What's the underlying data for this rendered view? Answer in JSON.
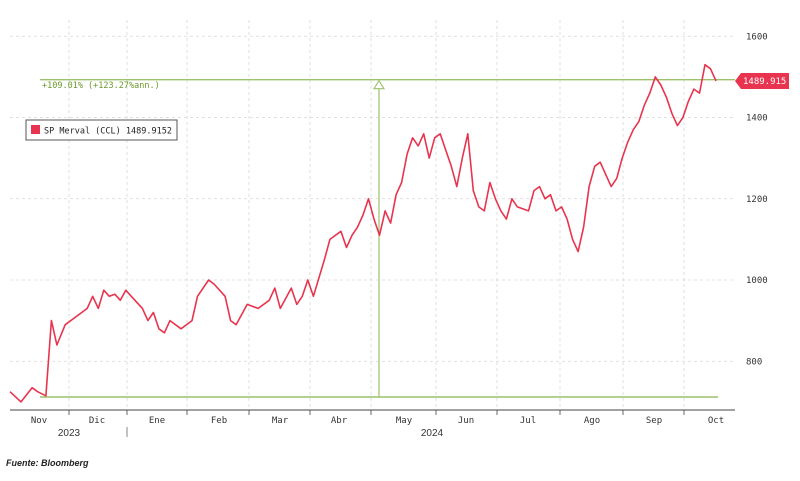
{
  "source": "Fuente: Bloomberg",
  "legend": {
    "label": "SP Merval (CCL)  1489.9152",
    "color": "#e8344e"
  },
  "annotation": {
    "text": "+109.01% (+123.27%ann.)",
    "color": "#9cc16b"
  },
  "last_value_label": "1489.915",
  "chart_data": {
    "type": "line",
    "y_ticks": [
      800,
      1000,
      1200,
      1400,
      1600
    ],
    "ylim": [
      680,
      1640
    ],
    "x_ticks": [
      "Nov",
      "Dic",
      "Ene",
      "Feb",
      "Mar",
      "Abr",
      "May",
      "Jun",
      "Jul",
      "Ago",
      "Sep",
      "Oct"
    ],
    "years": [
      "2023",
      "2024"
    ],
    "grid": true,
    "legend_position": "top-left",
    "reference_lines": {
      "low": 712,
      "high": 1493
    },
    "series": [
      {
        "name": "SP Merval (CCL)",
        "color": "#e8344e",
        "last": 1489.9152,
        "values": [
          [
            0.0,
            725
          ],
          [
            2.0,
            700
          ],
          [
            4.0,
            735
          ],
          [
            5.0,
            725
          ],
          [
            6.5,
            715
          ],
          [
            7.5,
            900
          ],
          [
            8.5,
            840
          ],
          [
            10,
            890
          ],
          [
            12,
            910
          ],
          [
            14,
            930
          ],
          [
            15,
            960
          ],
          [
            16,
            930
          ],
          [
            17,
            975
          ],
          [
            18,
            960
          ],
          [
            19,
            965
          ],
          [
            20,
            950
          ],
          [
            21,
            975
          ],
          [
            22,
            960
          ],
          [
            24,
            930
          ],
          [
            25,
            900
          ],
          [
            26,
            920
          ],
          [
            27,
            880
          ],
          [
            28,
            870
          ],
          [
            29,
            900
          ],
          [
            31,
            880
          ],
          [
            33,
            900
          ],
          [
            34,
            960
          ],
          [
            36,
            1000
          ],
          [
            37,
            990
          ],
          [
            39,
            960
          ],
          [
            40,
            900
          ],
          [
            41,
            890
          ],
          [
            43,
            940
          ],
          [
            45,
            930
          ],
          [
            47,
            950
          ],
          [
            48,
            980
          ],
          [
            49,
            930
          ],
          [
            51,
            980
          ],
          [
            52,
            940
          ],
          [
            53,
            960
          ],
          [
            54,
            1000
          ],
          [
            55,
            960
          ],
          [
            57,
            1050
          ],
          [
            58,
            1100
          ],
          [
            60,
            1120
          ],
          [
            61,
            1080
          ],
          [
            62,
            1110
          ],
          [
            63,
            1130
          ],
          [
            64,
            1160
          ],
          [
            65,
            1200
          ],
          [
            66,
            1150
          ],
          [
            67,
            1110
          ],
          [
            68,
            1170
          ],
          [
            69,
            1140
          ],
          [
            70,
            1210
          ],
          [
            71,
            1240
          ],
          [
            72,
            1310
          ],
          [
            73,
            1350
          ],
          [
            74,
            1330
          ],
          [
            75,
            1360
          ],
          [
            76,
            1300
          ],
          [
            77,
            1350
          ],
          [
            78,
            1360
          ],
          [
            79,
            1320
          ],
          [
            80,
            1280
          ],
          [
            81,
            1230
          ],
          [
            82,
            1300
          ],
          [
            83,
            1360
          ],
          [
            84,
            1220
          ],
          [
            85,
            1180
          ],
          [
            86,
            1170
          ],
          [
            87,
            1240
          ],
          [
            88,
            1200
          ],
          [
            89,
            1170
          ],
          [
            90,
            1150
          ],
          [
            91,
            1200
          ],
          [
            92,
            1180
          ],
          [
            94,
            1170
          ],
          [
            95,
            1220
          ],
          [
            96,
            1230
          ],
          [
            97,
            1200
          ],
          [
            98,
            1210
          ],
          [
            99,
            1170
          ],
          [
            100,
            1180
          ],
          [
            101,
            1150
          ],
          [
            102,
            1100
          ],
          [
            103,
            1070
          ],
          [
            104,
            1130
          ],
          [
            105,
            1230
          ],
          [
            106,
            1280
          ],
          [
            107,
            1290
          ],
          [
            108,
            1260
          ],
          [
            109,
            1230
          ],
          [
            110,
            1250
          ],
          [
            111,
            1300
          ],
          [
            112,
            1340
          ],
          [
            113,
            1370
          ],
          [
            114,
            1390
          ],
          [
            115,
            1430
          ],
          [
            116,
            1460
          ],
          [
            117,
            1500
          ],
          [
            118,
            1480
          ],
          [
            119,
            1450
          ],
          [
            120,
            1410
          ],
          [
            121,
            1380
          ],
          [
            122,
            1400
          ],
          [
            123,
            1440
          ],
          [
            124,
            1470
          ],
          [
            125,
            1460
          ],
          [
            126,
            1530
          ],
          [
            127,
            1520
          ],
          [
            128,
            1490
          ]
        ]
      }
    ]
  }
}
